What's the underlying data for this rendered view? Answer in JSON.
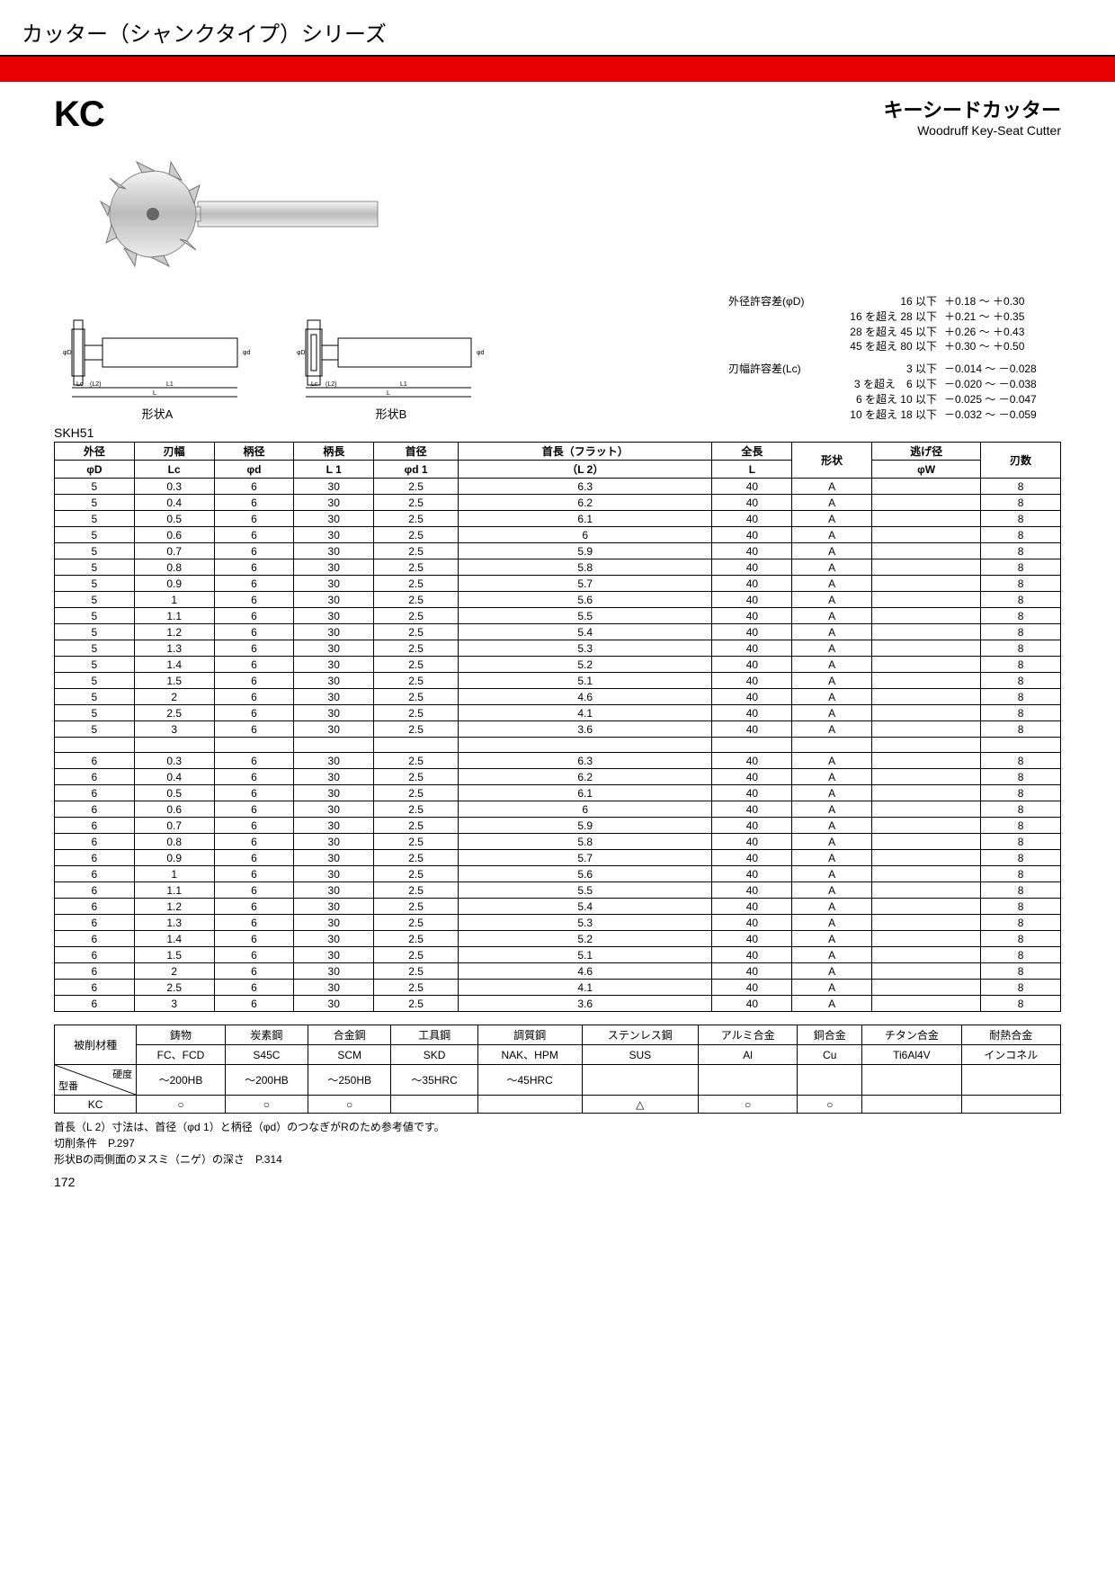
{
  "page": {
    "series_title": "カッター（シャンクタイプ）シリーズ",
    "logo": "KC",
    "title_jp": "キーシードカッター",
    "title_en": "Woodruff Key-Seat Cutter",
    "shape_a": "形状A",
    "shape_b": "形状B",
    "material": "SKH51",
    "page_number": "172"
  },
  "tolerances": {
    "od": {
      "label": "外径許容差(φD)",
      "rows": [
        {
          "cond": "16 以下",
          "val": "＋0.18 ～ ＋0.30"
        },
        {
          "cond": "16 を超え 28 以下",
          "val": "＋0.21 ～ ＋0.35"
        },
        {
          "cond": "28 を超え 45 以下",
          "val": "＋0.26 ～ ＋0.43"
        },
        {
          "cond": "45 を超え 80 以下",
          "val": "＋0.30 ～ ＋0.50"
        }
      ]
    },
    "width": {
      "label": "刃幅許容差(Lc)",
      "rows": [
        {
          "cond": "3 以下",
          "val": "－0.014 ～ －0.028"
        },
        {
          "cond": "3 を超え　6 以下",
          "val": "－0.020 ～ －0.038"
        },
        {
          "cond": "6 を超え 10 以下",
          "val": "－0.025 ～ －0.047"
        },
        {
          "cond": "10 を超え 18 以下",
          "val": "－0.032 ～ －0.059"
        }
      ]
    }
  },
  "spec_table": {
    "headers_top": [
      "外径",
      "刃幅",
      "柄径",
      "柄長",
      "首径",
      "首長（フラット）",
      "全長",
      "形状",
      "逃げ径",
      "刃数"
    ],
    "headers_bot": [
      "φD",
      "Lc",
      "φd",
      "L 1",
      "φd 1",
      "（L 2）",
      "L",
      "",
      "φW",
      ""
    ],
    "rows": [
      [
        "5",
        "0.3",
        "6",
        "30",
        "2.5",
        "6.3",
        "40",
        "A",
        "",
        "8"
      ],
      [
        "5",
        "0.4",
        "6",
        "30",
        "2.5",
        "6.2",
        "40",
        "A",
        "",
        "8"
      ],
      [
        "5",
        "0.5",
        "6",
        "30",
        "2.5",
        "6.1",
        "40",
        "A",
        "",
        "8"
      ],
      [
        "5",
        "0.6",
        "6",
        "30",
        "2.5",
        "6",
        "40",
        "A",
        "",
        "8"
      ],
      [
        "5",
        "0.7",
        "6",
        "30",
        "2.5",
        "5.9",
        "40",
        "A",
        "",
        "8"
      ],
      [
        "5",
        "0.8",
        "6",
        "30",
        "2.5",
        "5.8",
        "40",
        "A",
        "",
        "8"
      ],
      [
        "5",
        "0.9",
        "6",
        "30",
        "2.5",
        "5.7",
        "40",
        "A",
        "",
        "8"
      ],
      [
        "5",
        "1",
        "6",
        "30",
        "2.5",
        "5.6",
        "40",
        "A",
        "",
        "8"
      ],
      [
        "5",
        "1.1",
        "6",
        "30",
        "2.5",
        "5.5",
        "40",
        "A",
        "",
        "8"
      ],
      [
        "5",
        "1.2",
        "6",
        "30",
        "2.5",
        "5.4",
        "40",
        "A",
        "",
        "8"
      ],
      [
        "5",
        "1.3",
        "6",
        "30",
        "2.5",
        "5.3",
        "40",
        "A",
        "",
        "8"
      ],
      [
        "5",
        "1.4",
        "6",
        "30",
        "2.5",
        "5.2",
        "40",
        "A",
        "",
        "8"
      ],
      [
        "5",
        "1.5",
        "6",
        "30",
        "2.5",
        "5.1",
        "40",
        "A",
        "",
        "8"
      ],
      [
        "5",
        "2",
        "6",
        "30",
        "2.5",
        "4.6",
        "40",
        "A",
        "",
        "8"
      ],
      [
        "5",
        "2.5",
        "6",
        "30",
        "2.5",
        "4.1",
        "40",
        "A",
        "",
        "8"
      ],
      [
        "5",
        "3",
        "6",
        "30",
        "2.5",
        "3.6",
        "40",
        "A",
        "",
        "8"
      ]
    ],
    "rows2": [
      [
        "6",
        "0.3",
        "6",
        "30",
        "2.5",
        "6.3",
        "40",
        "A",
        "",
        "8"
      ],
      [
        "6",
        "0.4",
        "6",
        "30",
        "2.5",
        "6.2",
        "40",
        "A",
        "",
        "8"
      ],
      [
        "6",
        "0.5",
        "6",
        "30",
        "2.5",
        "6.1",
        "40",
        "A",
        "",
        "8"
      ],
      [
        "6",
        "0.6",
        "6",
        "30",
        "2.5",
        "6",
        "40",
        "A",
        "",
        "8"
      ],
      [
        "6",
        "0.7",
        "6",
        "30",
        "2.5",
        "5.9",
        "40",
        "A",
        "",
        "8"
      ],
      [
        "6",
        "0.8",
        "6",
        "30",
        "2.5",
        "5.8",
        "40",
        "A",
        "",
        "8"
      ],
      [
        "6",
        "0.9",
        "6",
        "30",
        "2.5",
        "5.7",
        "40",
        "A",
        "",
        "8"
      ],
      [
        "6",
        "1",
        "6",
        "30",
        "2.5",
        "5.6",
        "40",
        "A",
        "",
        "8"
      ],
      [
        "6",
        "1.1",
        "6",
        "30",
        "2.5",
        "5.5",
        "40",
        "A",
        "",
        "8"
      ],
      [
        "6",
        "1.2",
        "6",
        "30",
        "2.5",
        "5.4",
        "40",
        "A",
        "",
        "8"
      ],
      [
        "6",
        "1.3",
        "6",
        "30",
        "2.5",
        "5.3",
        "40",
        "A",
        "",
        "8"
      ],
      [
        "6",
        "1.4",
        "6",
        "30",
        "2.5",
        "5.2",
        "40",
        "A",
        "",
        "8"
      ],
      [
        "6",
        "1.5",
        "6",
        "30",
        "2.5",
        "5.1",
        "40",
        "A",
        "",
        "8"
      ],
      [
        "6",
        "2",
        "6",
        "30",
        "2.5",
        "4.6",
        "40",
        "A",
        "",
        "8"
      ],
      [
        "6",
        "2.5",
        "6",
        "30",
        "2.5",
        "4.1",
        "40",
        "A",
        "",
        "8"
      ],
      [
        "6",
        "3",
        "6",
        "30",
        "2.5",
        "3.6",
        "40",
        "A",
        "",
        "8"
      ]
    ]
  },
  "material_table": {
    "row_label": "被削材種",
    "diag_top": "硬度",
    "diag_bot": "型番",
    "headers": [
      "鋳物",
      "炭素鋼",
      "合金鋼",
      "工具鋼",
      "調質鋼",
      "ステンレス鋼",
      "アルミ合金",
      "銅合金",
      "チタン合金",
      "耐熱合金"
    ],
    "subheaders": [
      "FC、FCD",
      "S45C",
      "SCM",
      "SKD",
      "NAK、HPM",
      "SUS",
      "Al",
      "Cu",
      "Ti6Al4V",
      "インコネル"
    ],
    "hardness": [
      "～200HB",
      "～200HB",
      "～250HB",
      "～35HRC",
      "～45HRC",
      "",
      "",
      "",
      "",
      ""
    ],
    "kc_label": "KC",
    "kc_row": [
      "○",
      "○",
      "○",
      "",
      "",
      "△",
      "○",
      "○",
      "",
      ""
    ]
  },
  "notes": {
    "n1": "首長（L 2）寸法は、首径（φd 1）と柄径（φd）のつなぎがRのため参考値です。",
    "n2": "切削条件　P.297",
    "n3": "形状Bの両側面のヌスミ（ニゲ）の深さ　P.314"
  },
  "colors": {
    "red": "#e60000",
    "black": "#000000",
    "white": "#ffffff",
    "gray": "#999999"
  }
}
